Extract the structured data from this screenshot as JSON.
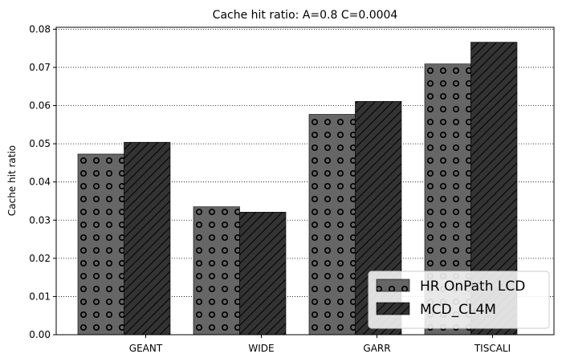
{
  "chart_data": {
    "type": "bar",
    "title": "Cache hit ratio: A=0.8 C=0.0004",
    "xlabel": "",
    "ylabel": "Cache hit ratio",
    "categories": [
      "GEANT",
      "WIDE",
      "GARR",
      "TISCALI"
    ],
    "series": [
      {
        "name": "HR OnPath LCD",
        "values": [
          0.0473,
          0.0335,
          0.0577,
          0.0709
        ],
        "color": "#666666",
        "hatch": "circles"
      },
      {
        "name": "MCD_CL4M",
        "values": [
          0.0504,
          0.0321,
          0.0611,
          0.0766
        ],
        "color": "#333333",
        "hatch": "diagonal"
      }
    ],
    "ylim": [
      0,
      0.0805
    ],
    "yticks": [
      0.0,
      0.01,
      0.02,
      0.03,
      0.04,
      0.05,
      0.06,
      0.07,
      0.08
    ],
    "ytick_labels": [
      "0.00",
      "0.01",
      "0.02",
      "0.03",
      "0.04",
      "0.05",
      "0.06",
      "0.07",
      "0.08"
    ],
    "grid": "horizontal-dotted",
    "legend_position": "lower-right"
  }
}
